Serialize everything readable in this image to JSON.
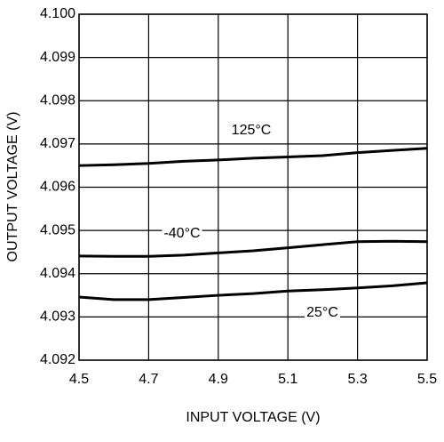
{
  "chart_data": {
    "type": "line",
    "xlabel": "INPUT VOLTAGE (V)",
    "ylabel": "OUTPUT VOLTAGE (V)",
    "x": [
      4.5,
      4.6,
      4.7,
      4.8,
      4.9,
      5.0,
      5.1,
      5.2,
      5.3,
      5.4,
      5.5
    ],
    "series": [
      {
        "name": "125°C",
        "color": "#000000",
        "values": [
          4.0965,
          4.09652,
          4.09655,
          4.0966,
          4.09663,
          4.09667,
          4.0967,
          4.09673,
          4.0968,
          4.09685,
          4.0969
        ]
      },
      {
        "name": "-40°C",
        "color": "#000000",
        "values": [
          4.09441,
          4.0944,
          4.0944,
          4.09443,
          4.09448,
          4.09453,
          4.0946,
          4.09467,
          4.09474,
          4.09475,
          4.09474
        ]
      },
      {
        "name": "25°C",
        "color": "#000000",
        "values": [
          4.09346,
          4.0934,
          4.0934,
          4.09345,
          4.0935,
          4.09354,
          4.0936,
          4.09363,
          4.09367,
          4.09372,
          4.09379
        ]
      }
    ],
    "xlim": [
      4.5,
      5.5
    ],
    "xticks": [
      4.5,
      4.7,
      4.9,
      5.1,
      5.3,
      5.5
    ],
    "ylim": [
      4.092,
      4.1
    ],
    "yticks": [
      {
        "value": 4.092,
        "label": "4.092"
      },
      {
        "value": 4.093,
        "label": "4.093"
      },
      {
        "value": 4.094,
        "label": "4.094"
      },
      {
        "value": 4.095,
        "label": "4.095"
      },
      {
        "value": 4.096,
        "label": "4.096"
      },
      {
        "value": 4.097,
        "label": "4.097"
      },
      {
        "value": 4.098,
        "label": "4.098"
      },
      {
        "value": 4.099,
        "label": "4.099"
      },
      {
        "value": 4.1,
        "label": "4.100"
      }
    ],
    "grid": true
  }
}
